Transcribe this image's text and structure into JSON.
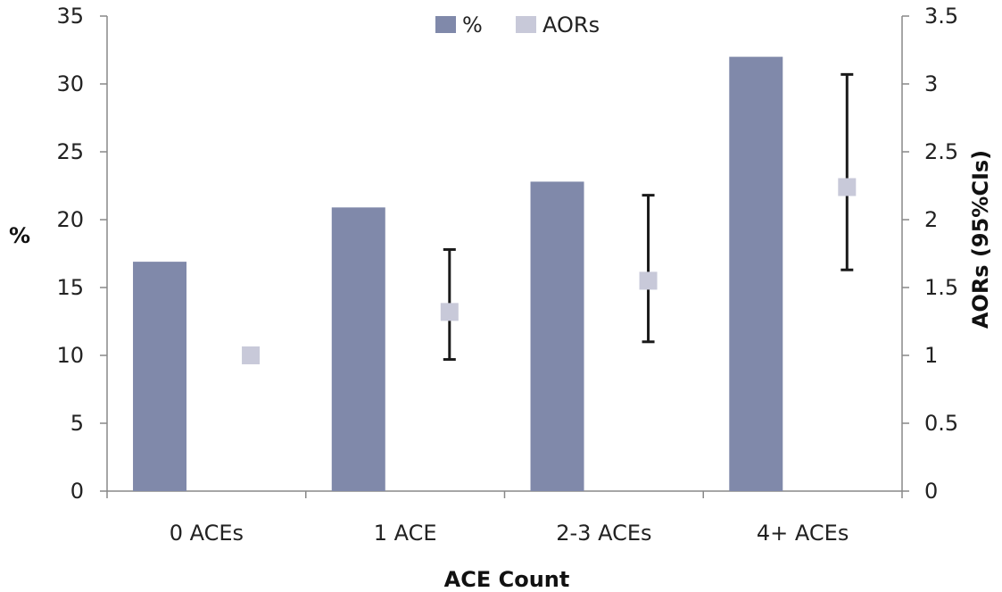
{
  "chart_data": {
    "type": "bar",
    "title": "",
    "xlabel": "ACE Count",
    "ylabel_left": "%",
    "ylabel_right": "AORs (95%CIs)",
    "categories": [
      "0 ACEs",
      "1 ACE",
      "2-3 ACEs",
      "4+ ACEs"
    ],
    "ylim_left": [
      0,
      35
    ],
    "yticks_left": [
      "0",
      "5",
      "10",
      "15",
      "20",
      "25",
      "30",
      "35"
    ],
    "ylim_right": [
      0,
      3.5
    ],
    "yticks_right": [
      "0",
      "0.5",
      "1",
      "1.5",
      "2",
      "2.5",
      "3",
      "3.5"
    ],
    "legend_position": "top-center",
    "grid": false,
    "series": [
      {
        "name": "%",
        "kind": "bar",
        "axis": "left",
        "color": "#8089aa",
        "values": [
          16.9,
          20.9,
          22.8,
          32.0
        ]
      },
      {
        "name": "AORs",
        "kind": "point",
        "axis": "right",
        "color": "#c8c9d9",
        "values": [
          1.0,
          1.32,
          1.55,
          2.24
        ],
        "ci_low": [
          null,
          0.97,
          1.1,
          1.63
        ],
        "ci_high": [
          null,
          1.78,
          2.18,
          3.07
        ]
      }
    ]
  }
}
